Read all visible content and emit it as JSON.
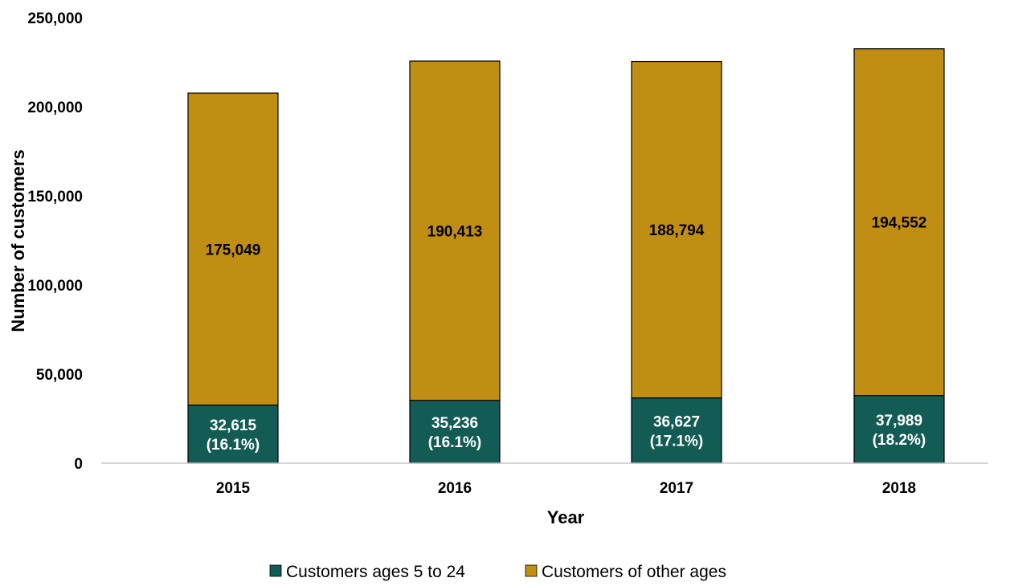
{
  "chart_data": {
    "type": "bar",
    "stacked": true,
    "categories": [
      "2015",
      "2016",
      "2017",
      "2018"
    ],
    "series": [
      {
        "name": "Customers ages 5 to 24",
        "values": [
          32615,
          35236,
          36627,
          37989
        ],
        "labels": [
          [
            "32,615",
            "(16.1%)"
          ],
          [
            "35,236",
            "(16.1%)"
          ],
          [
            "36,627",
            "(17.1%)"
          ],
          [
            "37,989",
            "(18.2%)"
          ]
        ],
        "color": "#125c55"
      },
      {
        "name": "Customers of other ages",
        "values": [
          175049,
          190413,
          188794,
          194552
        ],
        "labels": [
          [
            "175,049"
          ],
          [
            "190,413"
          ],
          [
            "188,794"
          ],
          [
            "194,552"
          ]
        ],
        "color": "#c08e13"
      }
    ],
    "xlabel": "Year",
    "ylabel": "Number of customers",
    "ylim": [
      0,
      250000
    ],
    "yticks": [
      0,
      50000,
      100000,
      150000,
      200000,
      250000
    ],
    "ytick_labels": [
      "0",
      "50,000",
      "100,000",
      "150,000",
      "200,000",
      "250,000"
    ],
    "grid": false,
    "legend_position": "bottom"
  }
}
